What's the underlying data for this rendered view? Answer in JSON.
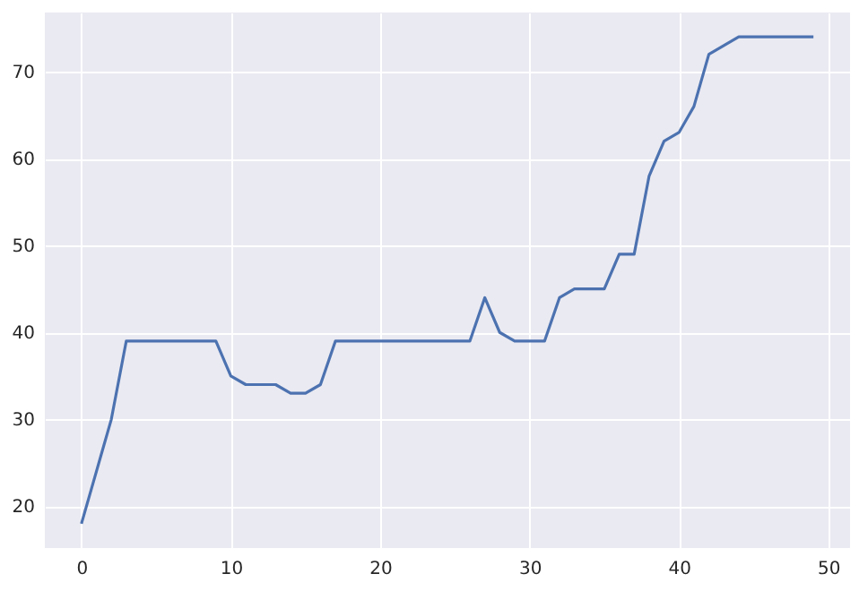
{
  "chart_data": {
    "type": "line",
    "x": [
      0,
      1,
      2,
      3,
      4,
      5,
      6,
      7,
      8,
      9,
      10,
      11,
      12,
      13,
      14,
      15,
      16,
      17,
      18,
      19,
      20,
      21,
      22,
      23,
      24,
      25,
      26,
      27,
      28,
      29,
      30,
      31,
      32,
      33,
      34,
      35,
      36,
      37,
      38,
      39,
      40,
      41,
      42,
      43,
      44,
      45,
      46,
      47,
      48,
      49
    ],
    "series": [
      {
        "color": "#4c72b0",
        "values": [
          18,
          24,
          30,
          39,
          39,
          39,
          39,
          39,
          39,
          39,
          35,
          34,
          34,
          34,
          33,
          33,
          34,
          39,
          39,
          39,
          39,
          39,
          39,
          39,
          39,
          39,
          39,
          44,
          40,
          39,
          39,
          39,
          44,
          45,
          45,
          45,
          49,
          49,
          58,
          62,
          63,
          66,
          72,
          73,
          74,
          74,
          74,
          74,
          74,
          74
        ]
      }
    ],
    "xlim": [
      -2.45,
      51.45
    ],
    "xticks": [
      0,
      10,
      20,
      30,
      40,
      50
    ],
    "ylim": [
      15.2,
      76.8
    ],
    "yticks": [
      20,
      30,
      40,
      50,
      60,
      70
    ],
    "grid": true
  }
}
